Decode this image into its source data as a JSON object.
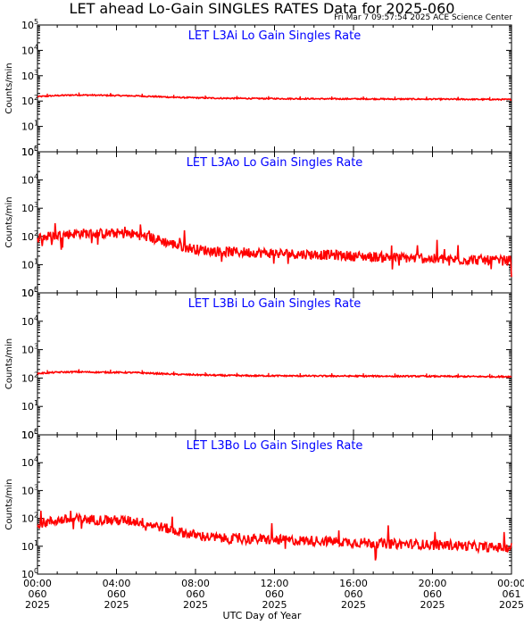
{
  "header": {
    "title": "LET ahead Lo-Gain SINGLES RATES Data for 2025-060",
    "timestamp": "Fri Mar  7 09:57:54 2025 ACE Science Center"
  },
  "colors": {
    "series": "#ff0000",
    "panel_title": "#0000ff",
    "axes": "#000000"
  },
  "chart_data": [
    {
      "type": "line",
      "title": "LET L3Ai Lo Gain Singles Rate",
      "ylabel": "Counts/min",
      "yscale": "log",
      "ylim": [
        1,
        100000
      ],
      "ytick_labels": [
        "10^0",
        "10^1",
        "10^2",
        "10^3",
        "10^4",
        "10^5"
      ],
      "xlim": [
        "2025-060 00:00",
        "2025-061 00:00"
      ],
      "series": [
        {
          "x": [
            "00:00",
            "01:00",
            "02:00",
            "03:00",
            "04:00",
            "05:00",
            "06:00",
            "07:00",
            "08:00",
            "09:00",
            "10:00",
            "11:00",
            "12:00",
            "13:00",
            "14:00",
            "15:00",
            "16:00",
            "17:00",
            "18:00",
            "19:00",
            "20:00",
            "21:00",
            "22:00",
            "23:00",
            "24:00"
          ],
          "values": [
            150,
            165,
            175,
            170,
            165,
            160,
            150,
            140,
            135,
            130,
            128,
            126,
            125,
            124,
            123,
            122,
            122,
            121,
            120,
            120,
            119,
            118,
            117,
            116,
            115
          ]
        }
      ]
    },
    {
      "type": "line",
      "title": "LET L3Ao Lo Gain Singles Rate",
      "ylabel": "Counts/min",
      "yscale": "log",
      "ylim": [
        1,
        100000
      ],
      "ytick_labels": [
        "10^0",
        "10^1",
        "10^2",
        "10^3",
        "10^4",
        "10^5"
      ],
      "xlim": [
        "2025-060 00:00",
        "2025-061 00:00"
      ],
      "series": [
        {
          "x": [
            "00:00",
            "01:00",
            "02:00",
            "03:00",
            "04:00",
            "05:00",
            "06:00",
            "07:00",
            "08:00",
            "09:00",
            "10:00",
            "11:00",
            "12:00",
            "13:00",
            "14:00",
            "15:00",
            "16:00",
            "17:00",
            "18:00",
            "19:00",
            "20:00",
            "21:00",
            "22:00",
            "23:00",
            "24:00"
          ],
          "values": [
            90,
            110,
            130,
            125,
            130,
            120,
            80,
            50,
            35,
            30,
            28,
            27,
            25,
            24,
            23,
            22,
            20,
            19,
            18,
            17,
            16,
            15,
            15,
            14,
            14
          ]
        }
      ]
    },
    {
      "type": "line",
      "title": "LET L3Bi Lo Gain Singles Rate",
      "ylabel": "Counts/min",
      "yscale": "log",
      "ylim": [
        1,
        100000
      ],
      "ytick_labels": [
        "10^0",
        "10^1",
        "10^2",
        "10^3",
        "10^4",
        "10^5"
      ],
      "xlim": [
        "2025-060 00:00",
        "2025-061 00:00"
      ],
      "series": [
        {
          "x": [
            "00:00",
            "01:00",
            "02:00",
            "03:00",
            "04:00",
            "05:00",
            "06:00",
            "07:00",
            "08:00",
            "09:00",
            "10:00",
            "11:00",
            "12:00",
            "13:00",
            "14:00",
            "15:00",
            "16:00",
            "17:00",
            "18:00",
            "19:00",
            "20:00",
            "21:00",
            "22:00",
            "23:00",
            "24:00"
          ],
          "values": [
            145,
            160,
            165,
            160,
            158,
            155,
            145,
            135,
            130,
            125,
            122,
            120,
            120,
            119,
            118,
            118,
            117,
            117,
            116,
            116,
            115,
            114,
            113,
            112,
            112
          ]
        }
      ]
    },
    {
      "type": "line",
      "title": "LET L3Bo Lo Gain Singles Rate",
      "ylabel": "Counts/min",
      "yscale": "log",
      "ylim": [
        1,
        100000
      ],
      "ytick_labels": [
        "10^0",
        "10^1",
        "10^2",
        "10^3",
        "10^4",
        "10^5"
      ],
      "xlim": [
        "2025-060 00:00",
        "2025-061 00:00"
      ],
      "xticks": [
        {
          "time": "00:00",
          "day": "060",
          "year": "2025"
        },
        {
          "time": "04:00",
          "day": "060",
          "year": "2025"
        },
        {
          "time": "08:00",
          "day": "060",
          "year": "2025"
        },
        {
          "time": "12:00",
          "day": "060",
          "year": "2025"
        },
        {
          "time": "16:00",
          "day": "060",
          "year": "2025"
        },
        {
          "time": "20:00",
          "day": "060",
          "year": "2025"
        },
        {
          "time": "00:00",
          "day": "061",
          "year": "2025"
        }
      ],
      "xlabel": "UTC Day of Year",
      "series": [
        {
          "x": [
            "00:00",
            "01:00",
            "02:00",
            "03:00",
            "04:00",
            "05:00",
            "06:00",
            "07:00",
            "08:00",
            "09:00",
            "10:00",
            "11:00",
            "12:00",
            "13:00",
            "14:00",
            "15:00",
            "16:00",
            "17:00",
            "18:00",
            "19:00",
            "20:00",
            "21:00",
            "22:00",
            "23:00",
            "24:00"
          ],
          "values": [
            65,
            85,
            95,
            90,
            85,
            80,
            55,
            35,
            25,
            20,
            18,
            18,
            17,
            16,
            16,
            15,
            14,
            13,
            12,
            12,
            11,
            11,
            10,
            9,
            9
          ]
        }
      ]
    }
  ]
}
